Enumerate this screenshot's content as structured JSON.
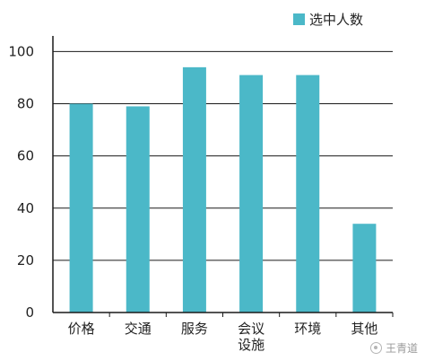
{
  "chart_data": {
    "type": "bar",
    "categories": [
      "价格",
      "交通",
      "服务",
      "会议\n设施",
      "环境",
      "其他"
    ],
    "series": [
      {
        "name": "选中人数",
        "values": [
          80,
          79,
          94,
          91,
          91,
          34
        ],
        "color": "#4bb8c8"
      }
    ],
    "yticks": [
      0,
      20,
      40,
      60,
      80,
      100
    ],
    "ylim": [
      0,
      106
    ],
    "grid": true,
    "legend": "top-right"
  },
  "watermark": {
    "text": "王青道"
  }
}
